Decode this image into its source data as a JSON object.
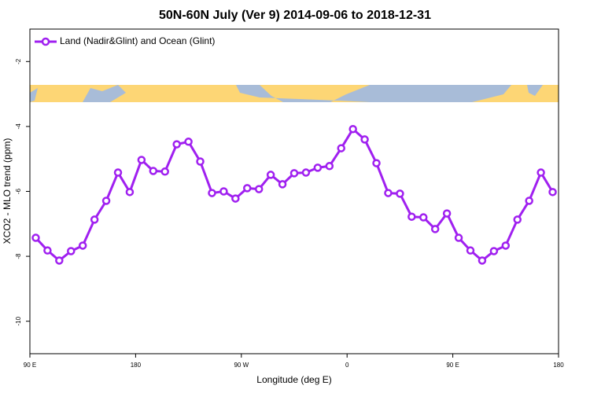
{
  "chart_data": {
    "type": "line",
    "title": "50N-60N July (Ver 9)   2014-09-06 to 2018-12-31",
    "x_label": "Longitude (deg E)",
    "y_label": "XCO2 - MLO trend (ppm)",
    "x": [
      95,
      105,
      115,
      125,
      135,
      145,
      155,
      165,
      175,
      185,
      195,
      205,
      215,
      225,
      235,
      245,
      255,
      265,
      275,
      285,
      295,
      305,
      315,
      325,
      335,
      345,
      355,
      365,
      375,
      385,
      395,
      405,
      415,
      425,
      435,
      445,
      455,
      465,
      475,
      485,
      495,
      505,
      515,
      525,
      535
    ],
    "series": [
      {
        "name": "Land (Nadir&Glint) and Ocean (Glint)",
        "color": "#a020f0",
        "values": [
          -7.43,
          -7.82,
          -8.13,
          -7.84,
          -7.67,
          -6.87,
          -6.29,
          -5.42,
          -6.02,
          -5.03,
          -5.37,
          -5.39,
          -4.55,
          -4.47,
          -5.08,
          -6.05,
          -6.0,
          -6.22,
          -5.9,
          -5.93,
          -5.49,
          -5.78,
          -5.44,
          -5.42,
          -5.27,
          -5.22,
          -4.67,
          -4.08,
          -4.4,
          -5.13,
          -6.05,
          -6.07,
          -6.78,
          -6.8,
          -7.16,
          -6.68,
          -7.43,
          -7.82,
          -8.13,
          -7.84,
          -7.67,
          -6.87,
          -6.29,
          -5.42,
          -6.02
        ]
      }
    ],
    "xlim": [
      90,
      540
    ],
    "xticks": [
      {
        "value": 90,
        "label": "90 E"
      },
      {
        "value": 180,
        "label": "180"
      },
      {
        "value": 270,
        "label": "90 W"
      },
      {
        "value": 360,
        "label": "0"
      },
      {
        "value": 450,
        "label": "90 E"
      },
      {
        "value": 540,
        "label": "180"
      }
    ],
    "ylim": [
      -11,
      -1
    ],
    "yticks": [
      -2,
      -4,
      -6,
      -8,
      -10
    ],
    "legend": "top-left"
  }
}
